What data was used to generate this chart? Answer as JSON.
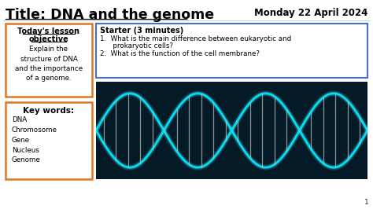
{
  "title": "Title: DNA and the genome",
  "date": "Monday 22 April 2024",
  "bg_color": "#ffffff",
  "title_color": "#000000",
  "date_color": "#000000",
  "objective_title_line1": "Today's lesson",
  "objective_title_line2": "objective",
  "objective_body": "Explain the\nstructure of DNA\nand the importance\nof a genome.",
  "objective_box_edgecolor": "#e07820",
  "keywords_title": "Key words:",
  "keywords_list": [
    "DNA",
    "Chromosome",
    "Gene",
    "Nucleus",
    "Genome"
  ],
  "keywords_box_edgecolor": "#e07820",
  "starter_title": "Starter (3 minutes)",
  "starter_item1": "What is the main difference between eukaryotic and",
  "starter_item1b": "prokaryotic cells?",
  "starter_item2": "What is the function of the cell membrane?",
  "starter_box_edgecolor": "#4472c4",
  "dna_bg": "#041a26",
  "dna_color": "#00e5ff",
  "dna_glow_color": "#88ffff",
  "dna_rung_color": "#bbbbbb",
  "slide_number": "1",
  "fig_w": 4.74,
  "fig_h": 2.66,
  "dpi": 100,
  "title_fontsize": 12.5,
  "date_fontsize": 8.5,
  "obj_title_fontsize": 7.0,
  "obj_body_fontsize": 6.3,
  "kw_title_fontsize": 7.5,
  "kw_body_fontsize": 6.3,
  "starter_title_fontsize": 7.0,
  "starter_body_fontsize": 6.3
}
